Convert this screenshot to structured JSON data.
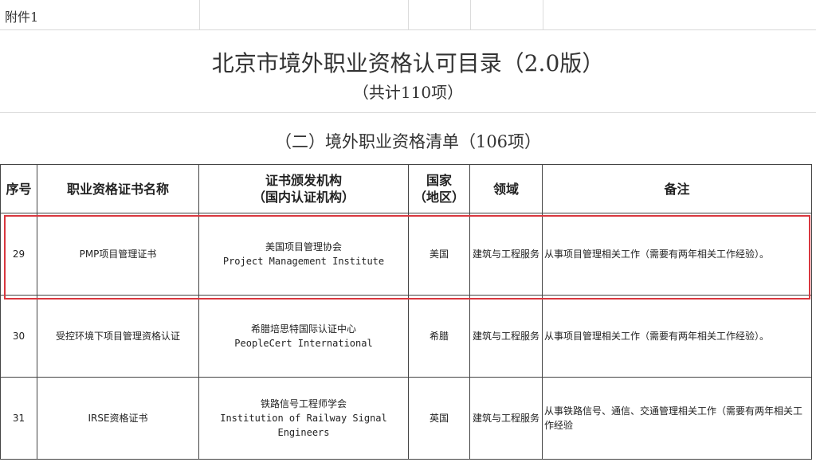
{
  "attachment_label": "附件1",
  "title": "北京市境外职业资格认可目录（2.0版）",
  "subtitle": "（共计110项）",
  "section_title": "（二）境外职业资格清单（106项）",
  "highlight_color": "#d9373f",
  "table": {
    "headers": {
      "seq": "序号",
      "name": "职业资格证书名称",
      "issuer_line1": "证书颁发机构",
      "issuer_line2": "（国内认证机构）",
      "country_line1": "国家",
      "country_line2": "（地区）",
      "field": "领域",
      "remarks": "备注"
    },
    "rows": [
      {
        "seq": "29",
        "name": "PMP项目管理证书",
        "issuer_cn": "美国项目管理协会",
        "issuer_en": "Project Management Institute",
        "country": "美国",
        "field": "建筑与工程服务",
        "remarks": "从事项目管理相关工作（需要有两年相关工作经验）。",
        "highlighted": true
      },
      {
        "seq": "30",
        "name": "受控环境下项目管理资格认证",
        "issuer_cn": "希腊培思特国际认证中心",
        "issuer_en": "PeopleCert International",
        "country": "希腊",
        "field": "建筑与工程服务",
        "remarks": "从事项目管理相关工作（需要有两年相关工作经验）。",
        "highlighted": false
      },
      {
        "seq": "31",
        "name": "IRSE资格证书",
        "issuer_cn": "铁路信号工程师学会",
        "issuer_en": "Institution of Railway Signal Engineers",
        "country": "英国",
        "field": "建筑与工程服务",
        "remarks": "从事铁路信号、通信、交通管理相关工作（需要有两年相关工作经验",
        "highlighted": false
      }
    ]
  }
}
